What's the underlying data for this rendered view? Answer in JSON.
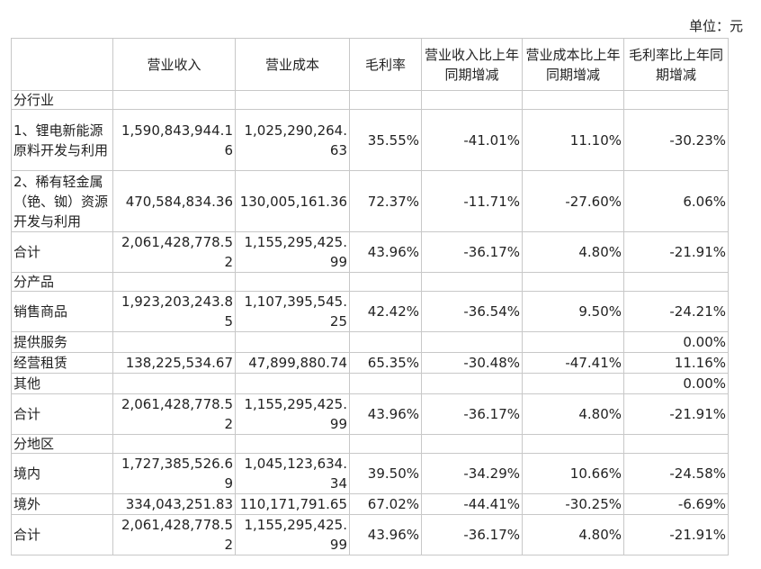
{
  "unit_label": "单位：元",
  "headers": [
    "",
    "营业收入",
    "营业成本",
    "毛利率",
    "营业收入比上年同期增减",
    "营业成本比上年同期增减",
    "毛利率比上年同期增减"
  ],
  "sections": {
    "industry": "分行业",
    "product": "分产品",
    "region": "分地区"
  },
  "rows": {
    "ind1": [
      "1、锂电新能源原料开发与利用",
      "1,590,843,944.16",
      "1,025,290,264.63",
      "35.55%",
      "-41.01%",
      "11.10%",
      "-30.23%"
    ],
    "ind2": [
      "2、稀有轻金属（铯、铷）资源开发与利用",
      "470,584,834.36",
      "130,005,161.36",
      "72.37%",
      "-11.71%",
      "-27.60%",
      "6.06%"
    ],
    "ind_total": [
      "合计",
      "2,061,428,778.52",
      "1,155,295,425.99",
      "43.96%",
      "-36.17%",
      "4.80%",
      "-21.91%"
    ],
    "prod1": [
      "销售商品",
      "1,923,203,243.85",
      "1,107,395,545.25",
      "42.42%",
      "-36.54%",
      "9.50%",
      "-24.21%"
    ],
    "prod2": [
      "提供服务",
      "",
      "",
      "",
      "",
      "",
      "0.00%"
    ],
    "prod3": [
      "经营租赁",
      "138,225,534.67",
      "47,899,880.74",
      "65.35%",
      "-30.48%",
      "-47.41%",
      "11.16%"
    ],
    "prod4": [
      "其他",
      "",
      "",
      "",
      "",
      "",
      "0.00%"
    ],
    "prod_total": [
      "合计",
      "2,061,428,778.52",
      "1,155,295,425.99",
      "43.96%",
      "-36.17%",
      "4.80%",
      "-21.91%"
    ],
    "reg1": [
      "境内",
      "1,727,385,526.69",
      "1,045,123,634.34",
      "39.50%",
      "-34.29%",
      "10.66%",
      "-24.58%"
    ],
    "reg2": [
      "境外",
      "334,043,251.83",
      "110,171,791.65",
      "67.02%",
      "-44.41%",
      "-30.25%",
      "-6.69%"
    ],
    "reg_total": [
      "合计",
      "2,061,428,778.52",
      "1,155,295,425.99",
      "43.96%",
      "-36.17%",
      "4.80%",
      "-21.91%"
    ]
  }
}
